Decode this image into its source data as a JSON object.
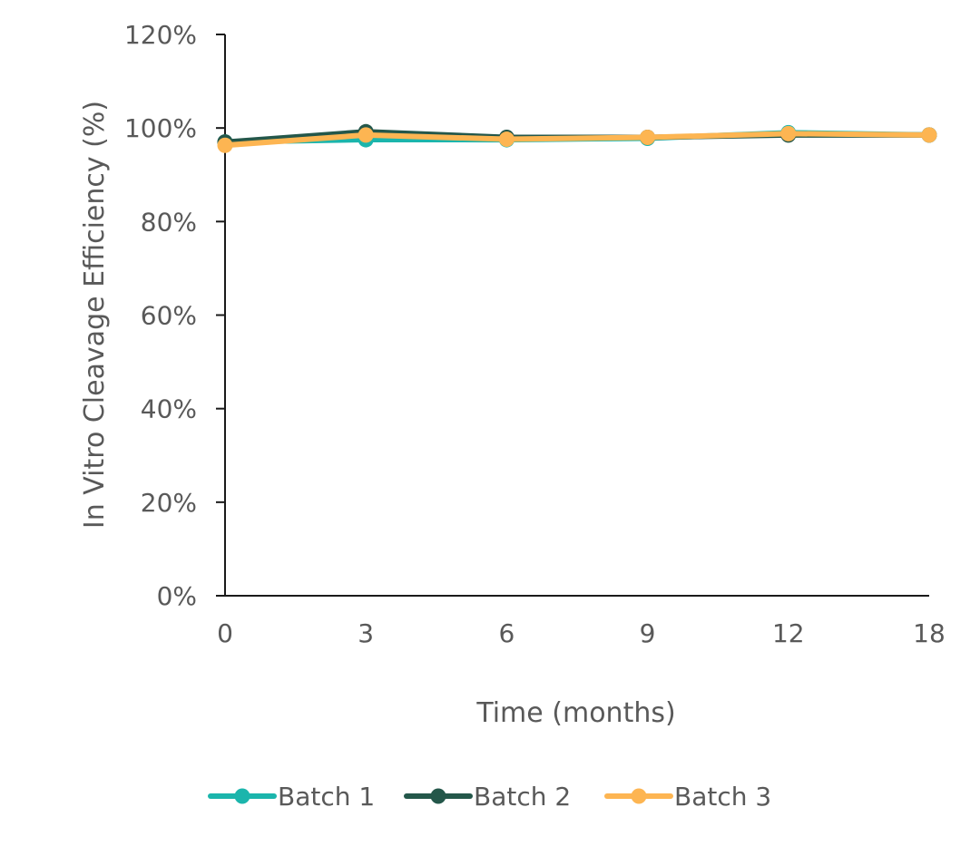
{
  "chart_data": {
    "type": "line",
    "title": "",
    "xlabel": "Time (months)",
    "ylabel": "In Vitro Cleavage Efficiency (%)",
    "categories": [
      "0",
      "3",
      "6",
      "9",
      "12",
      "18"
    ],
    "y_ticks": [
      "0%",
      "20%",
      "40%",
      "60%",
      "80%",
      "100%",
      "120%"
    ],
    "ylim": [
      0,
      120
    ],
    "grid": false,
    "legend_position": "bottom",
    "series": [
      {
        "name": "Batch 1",
        "color": "#1BB5AC",
        "values": [
          97.0,
          97.5,
          97.5,
          97.8,
          99.0,
          98.5
        ]
      },
      {
        "name": "Batch 2",
        "color": "#24574A",
        "values": [
          97.0,
          99.2,
          98.0,
          98.0,
          98.5,
          98.5
        ]
      },
      {
        "name": "Batch 3",
        "color": "#FDB552",
        "values": [
          96.3,
          98.5,
          97.6,
          98.0,
          98.8,
          98.5
        ]
      }
    ]
  }
}
